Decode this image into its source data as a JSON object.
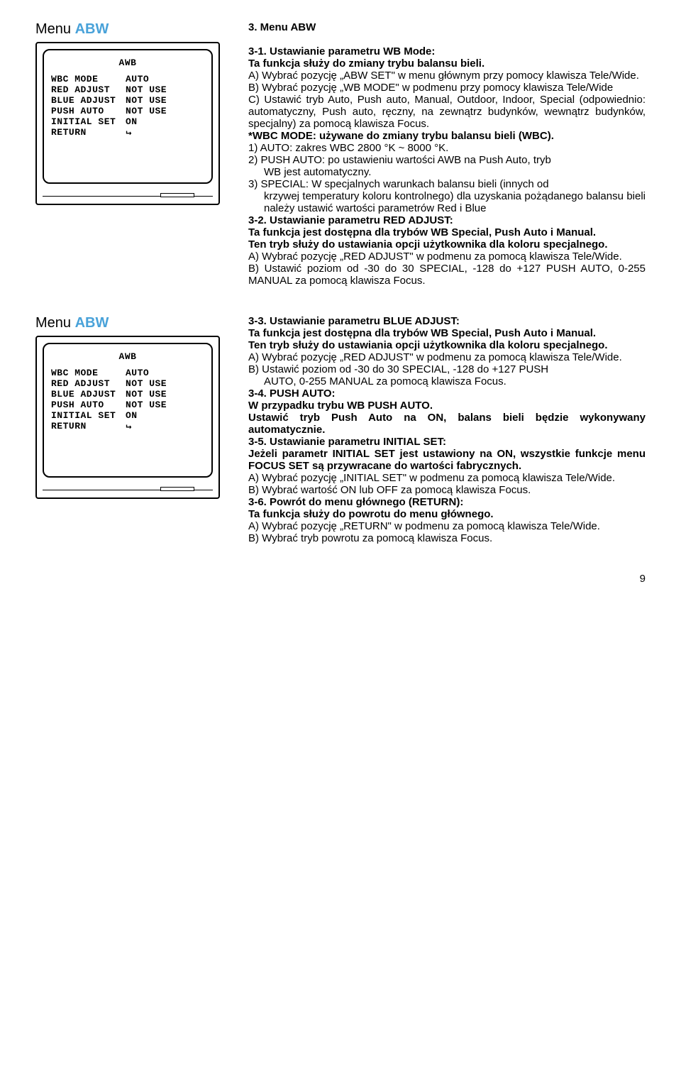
{
  "page_number": "9",
  "menu_label_prefix": "Menu ",
  "menu_label_suffix": "ABW",
  "crt": {
    "title": "AWB",
    "rows": [
      {
        "key": "WBC MODE",
        "val": "AUTO"
      },
      {
        "key": "RED ADJUST",
        "val": "NOT USE"
      },
      {
        "key": "BLUE ADJUST",
        "val": "NOT USE"
      },
      {
        "key": "PUSH AUTO",
        "val": "NOT USE"
      },
      {
        "key": "INITIAL SET",
        "val": "ON"
      },
      {
        "key": "RETURN",
        "val": ""
      }
    ]
  },
  "s1": {
    "heading": "3. Menu ABW",
    "t31": "3-1. Ustawianie parametru WB Mode:",
    "t31b": "Ta funkcja służy do zmiany trybu balansu bieli.",
    "a": "A) Wybrać pozycję „ABW SET\" w menu głównym przy pomocy klawisza Tele/Wide.",
    "b": "B) Wybrać pozycję „WB MODE\" w podmenu przy pomocy klawisza Tele/Wide",
    "c": "C) Ustawić tryb Auto, Push auto, Manual, Outdoor, Indoor, Special (odpowiednio: automatyczny, Push auto, ręczny, na zewnątrz budynków, wewnątrz budynków, specjalny) za pomocą klawisza Focus.",
    "wbc": "*WBC MODE: używane do zmiany trybu balansu bieli (WBC).",
    "l1": "1) AUTO: zakres WBC 2800 °K ~ 8000 °K.",
    "l2a": "2) PUSH AUTO: po ustawieniu wartości AWB na Push Auto, tryb",
    "l2b": "WB jest automatyczny.",
    "l3a": "3) SPECIAL: W specjalnych warunkach balansu bieli (innych od",
    "l3b": "krzywej temperatury koloru kontrolnego) dla uzyskania pożądanego balansu bieli należy ustawić wartości parametrów Red i Blue",
    "t32": "3-2. Ustawianie parametru RED ADJUST:",
    "t32b": "Ta funkcja jest dostępna dla trybów WB Special, Push Auto i Manual.",
    "t32c": "Ten tryb służy do ustawiania opcji użytkownika dla koloru specjalnego.",
    "ra": "A) Wybrać pozycję „RED ADJUST\" w podmenu za pomocą klawisza Tele/Wide.",
    "rb": "B) Ustawić poziom od -30 do 30 SPECIAL, -128 do +127 PUSH AUTO, 0-255 MANUAL za pomocą klawisza Focus."
  },
  "s2": {
    "t33": "3-3. Ustawianie parametru BLUE ADJUST:",
    "t33b": "Ta funkcja jest dostępna dla trybów WB Special, Push Auto i Manual.",
    "t33c": "Ten tryb służy do ustawiania opcji użytkownika dla koloru specjalnego.",
    "ba": "A) Wybrać pozycję „RED ADJUST\" w podmenu za pomocą klawisza Tele/Wide.",
    "bb1": "B) Ustawić poziom od -30 do 30 SPECIAL, -128 do +127 PUSH",
    "bb2": "AUTO, 0-255 MANUAL za pomocą klawisza Focus.",
    "t34": "3-4. PUSH AUTO:",
    "t34b": "W przypadku trybu WB PUSH AUTO.",
    "t34c": "Ustawić tryb Push Auto na ON, balans bieli będzie wykonywany automatycznie.",
    "t35": "3-5. Ustawianie parametru INITIAL SET:",
    "t35b": "Jeżeli parametr INITIAL SET jest ustawiony na ON, wszystkie funkcje menu FOCUS SET są przywracane do wartości fabrycznych.",
    "ia": "A) Wybrać pozycję „INITIAL SET\" w podmenu za pomocą klawisza Tele/Wide.",
    "ib": "B) Wybrać wartość ON lub OFF za pomocą klawisza Focus.",
    "t36": "3-6. Powrót do menu głównego (RETURN):",
    "t36b": "Ta funkcja służy do powrotu do menu głównego.",
    "ra": "A) Wybrać pozycję „RETURN\" w podmenu za pomocą klawisza Tele/Wide.",
    "rb": "B) Wybrać tryb powrotu za pomocą klawisza Focus."
  }
}
